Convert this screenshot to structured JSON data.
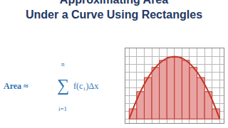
{
  "chart_data": {
    "type": "bar",
    "title": "Approximating Area\nUnder a Curve Using Rectangles",
    "formula": {
      "lhs": "Area ≈",
      "sum": "∑",
      "upper": "n",
      "lower": "i=1",
      "term": "f(c₁)Δx"
    },
    "xlim": [
      -0.5,
      12.5
    ],
    "ylim": [
      -0.5,
      9
    ],
    "xticks": [
      0,
      1,
      2,
      3,
      4,
      5,
      6,
      7,
      8,
      9,
      10,
      11,
      12
    ],
    "yticks": [
      0,
      1,
      2,
      3,
      4,
      5,
      6,
      7,
      8,
      9
    ],
    "grid": true,
    "tick_labels": false,
    "series": [
      {
        "type": "bar",
        "color": "#e9a3a3",
        "x": [
          0.5,
          1.5,
          2.5,
          3.5,
          4.5,
          5.5,
          6.5,
          7.5,
          8.5,
          9.5,
          10.5,
          11.5
        ],
        "values": [
          1.3,
          3.5,
          5.3,
          6.6,
          7.5,
          7.9,
          7.9,
          7.5,
          6.6,
          5.3,
          3.5,
          1.3
        ]
      },
      {
        "type": "line",
        "color": "#c0392b",
        "x": [
          0,
          1,
          2,
          3,
          4,
          5,
          6,
          7,
          8,
          9,
          10,
          11,
          12
        ],
        "values": [
          0,
          2.44,
          4.44,
          6,
          7.11,
          7.78,
          8,
          7.78,
          7.11,
          6,
          4.44,
          2.44,
          0
        ]
      }
    ]
  }
}
